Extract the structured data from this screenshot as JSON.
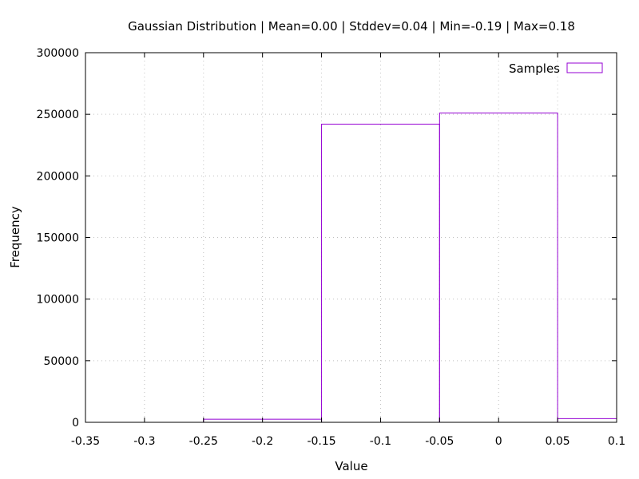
{
  "chart_data": {
    "type": "bar",
    "title": "Gaussian Distribution | Mean=0.00 | Stddev=0.04 | Min=-0.19 | Max=0.18",
    "xlabel": "Value",
    "ylabel": "Frequency",
    "xlim": [
      -0.35,
      0.1
    ],
    "ylim": [
      0,
      300000
    ],
    "xticks": [
      "-0.35",
      "-0.3",
      "-0.25",
      "-0.2",
      "-0.15",
      "-0.1",
      "-0.05",
      "0",
      "0.05",
      "0.1"
    ],
    "yticks": [
      "0",
      "50000",
      "100000",
      "150000",
      "200000",
      "250000",
      "300000"
    ],
    "grid": true,
    "legend_position": "top-right",
    "colors": {
      "series": "#9400d3",
      "axis": "#000000",
      "grid": "#c0c0c0"
    },
    "series": [
      {
        "name": "Samples",
        "bins": [
          {
            "x0": -0.25,
            "x1": -0.15,
            "value": 2500
          },
          {
            "x0": -0.15,
            "x1": -0.05,
            "value": 242000
          },
          {
            "x0": -0.05,
            "x1": 0.05,
            "value": 251000
          },
          {
            "x0": 0.05,
            "x1": 0.1,
            "value": 3000
          }
        ]
      }
    ]
  }
}
